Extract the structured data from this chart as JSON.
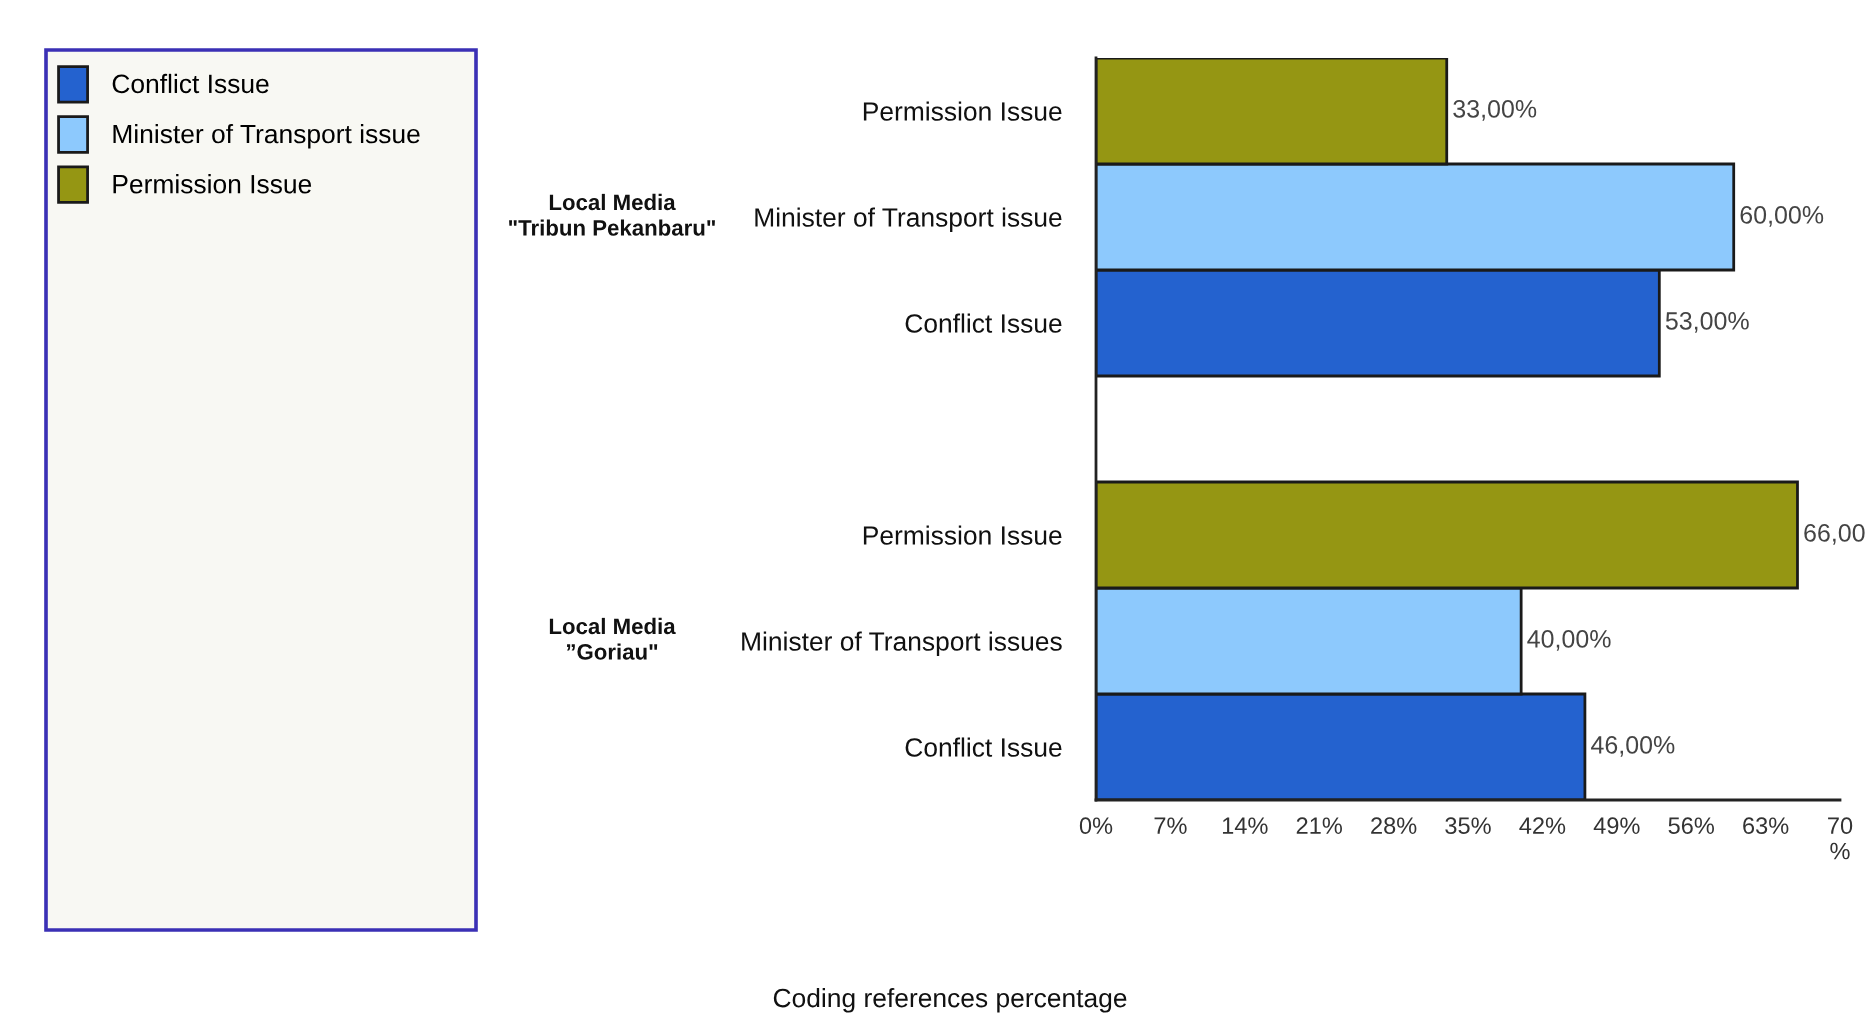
{
  "chart_data": {
    "type": "bar",
    "orientation": "horizontal",
    "categories": [
      "Permission Issue",
      "Minister of Transport issue",
      "Conflict Issue",
      null,
      "Permission Issue",
      "Minister of Transport issues",
      "Conflict Issue"
    ],
    "series": [
      {
        "name": "Conflict Issue",
        "color": "#2462cf",
        "values": [
          null,
          null,
          53,
          null,
          null,
          null,
          46
        ],
        "value_labels": [
          null,
          null,
          "53,00%",
          null,
          null,
          null,
          "46,00%"
        ]
      },
      {
        "name": "Minister of Transport issue",
        "color": "#8dc9fd",
        "values": [
          null,
          60,
          null,
          null,
          null,
          40,
          null
        ],
        "value_labels": [
          null,
          "60,00%",
          null,
          null,
          null,
          "40,00%",
          null
        ]
      },
      {
        "name": "Permission Issue",
        "color": "#959613",
        "values": [
          33,
          null,
          null,
          null,
          66,
          null,
          null
        ],
        "value_labels": [
          "33,00%",
          null,
          null,
          null,
          "66,00",
          null,
          null
        ]
      }
    ],
    "xlim": [
      0,
      70
    ],
    "xticks": [
      {
        "value": 0,
        "label": "0%"
      },
      {
        "value": 7,
        "label": "7%"
      },
      {
        "value": 14,
        "label": "14%"
      },
      {
        "value": 21,
        "label": "21%"
      },
      {
        "value": 28,
        "label": "28%"
      },
      {
        "value": 35,
        "label": "35%"
      },
      {
        "value": 42,
        "label": "42%"
      },
      {
        "value": 49,
        "label": "49%"
      },
      {
        "value": 56,
        "label": "56%"
      },
      {
        "value": 63,
        "label": "63%"
      },
      {
        "value": 70,
        "label": "70\n%"
      }
    ],
    "xlabel": "Coding references percentage",
    "annotations": [
      "Local Media\n\"Tribun Pekanbaru\"",
      "Local Media\n”Goriau\""
    ],
    "legend": "left"
  }
}
